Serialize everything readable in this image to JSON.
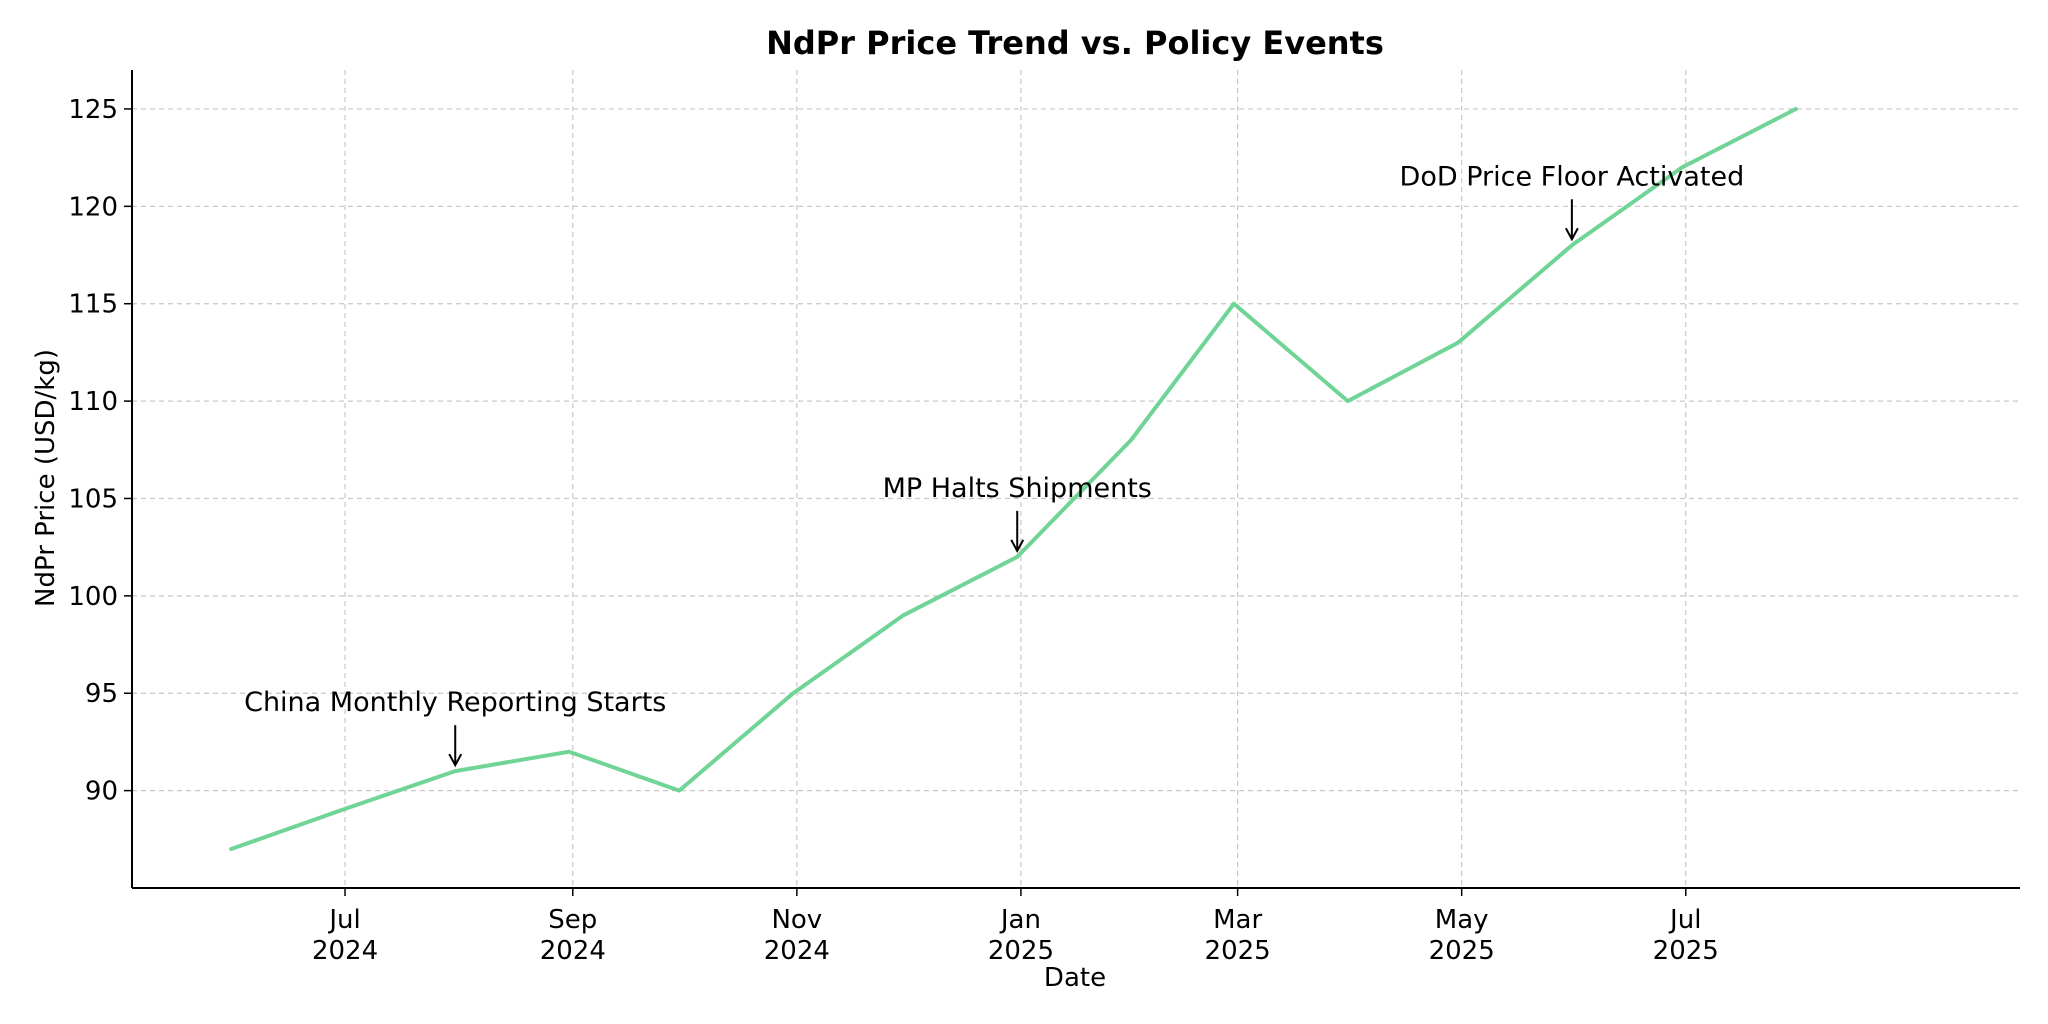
{
  "chart_data": {
    "type": "line",
    "title": "NdPr Price Trend vs. Policy Events",
    "xlabel": "Date",
    "ylabel": "NdPr Price (USD/kg)",
    "ylim": [
      85,
      127
    ],
    "xlim": [
      "2024-05-04",
      "2025-09-30"
    ],
    "grid": true,
    "x_ticks": [
      {
        "date": "2024-07-01",
        "label_line1": "Jul",
        "label_line2": "2024"
      },
      {
        "date": "2024-09-01",
        "label_line1": "Sep",
        "label_line2": "2024"
      },
      {
        "date": "2024-11-01",
        "label_line1": "Nov",
        "label_line2": "2024"
      },
      {
        "date": "2025-01-01",
        "label_line1": "Jan",
        "label_line2": "2025"
      },
      {
        "date": "2025-03-01",
        "label_line1": "Mar",
        "label_line2": "2025"
      },
      {
        "date": "2025-05-01",
        "label_line1": "May",
        "label_line2": "2025"
      },
      {
        "date": "2025-07-01",
        "label_line1": "Jul",
        "label_line2": "2025"
      }
    ],
    "y_ticks": [
      90,
      95,
      100,
      105,
      110,
      115,
      120,
      125
    ],
    "series": [
      {
        "color": "#6fd495",
        "points": [
          {
            "x": "2024-05-31",
            "y": 87
          },
          {
            "x": "2024-06-30",
            "y": 89
          },
          {
            "x": "2024-07-31",
            "y": 91
          },
          {
            "x": "2024-08-31",
            "y": 92
          },
          {
            "x": "2024-09-30",
            "y": 90
          },
          {
            "x": "2024-10-31",
            "y": 95
          },
          {
            "x": "2024-11-30",
            "y": 99
          },
          {
            "x": "2024-12-31",
            "y": 102
          },
          {
            "x": "2025-01-31",
            "y": 108
          },
          {
            "x": "2025-02-28",
            "y": 115
          },
          {
            "x": "2025-03-31",
            "y": 110
          },
          {
            "x": "2025-04-30",
            "y": 113
          },
          {
            "x": "2025-05-31",
            "y": 118
          },
          {
            "x": "2025-06-30",
            "y": 122
          },
          {
            "x": "2025-07-31",
            "y": 125
          }
        ]
      }
    ],
    "annotations": [
      {
        "text": "China Monthly Reporting Starts",
        "x": "2024-07-31",
        "y": 91
      },
      {
        "text": "MP Halts Shipments",
        "x": "2024-12-31",
        "y": 102
      },
      {
        "text": "DoD Price Floor Activated",
        "x": "2025-05-31",
        "y": 118
      }
    ]
  }
}
